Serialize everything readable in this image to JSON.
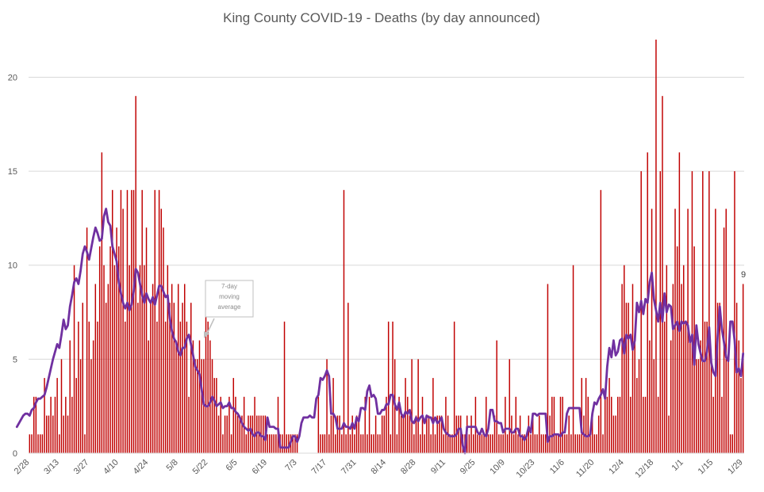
{
  "chart_data": {
    "type": "bar",
    "title": "King County COVID-19 - Deaths (by day announced)",
    "xlabel": "",
    "ylabel": "",
    "ylim": [
      0,
      22
    ],
    "yticks": [
      0,
      5,
      10,
      15,
      20
    ],
    "grid": true,
    "x_tick_labels": [
      "2/28",
      "3/13",
      "3/27",
      "4/10",
      "4/24",
      "5/8",
      "5/22",
      "6/5",
      "6/19",
      "7/3",
      "7/17",
      "7/31",
      "8/14",
      "8/28",
      "9/11",
      "9/25",
      "10/9",
      "10/23",
      "11/6",
      "11/20",
      "12/4",
      "12/18",
      "1/1",
      "1/15",
      "1/29"
    ],
    "series": [
      {
        "type": "bar",
        "color": "#C00000",
        "values": [
          1,
          1,
          3,
          3,
          1,
          1,
          1,
          4,
          2,
          2,
          3,
          2,
          3,
          4,
          1,
          5,
          2,
          3,
          2,
          6,
          3,
          10,
          4,
          7,
          5,
          8,
          1,
          12,
          7,
          5,
          6,
          9,
          7,
          11,
          16,
          10,
          8,
          9,
          11,
          14,
          10,
          12,
          11,
          14,
          13,
          7,
          14,
          10,
          14,
          14,
          19,
          8,
          10,
          14,
          10,
          12,
          6,
          8,
          9,
          14,
          7,
          14,
          13,
          12,
          7,
          10,
          8,
          9,
          8,
          6,
          9,
          7,
          8,
          9,
          7,
          3,
          8,
          6,
          5,
          5,
          6,
          5,
          5,
          8,
          7,
          6,
          5,
          4,
          4,
          2,
          3,
          1,
          2,
          2,
          3,
          1,
          4,
          3,
          2,
          2,
          2,
          3,
          1,
          2,
          2,
          2,
          3,
          2,
          2,
          2,
          2,
          2,
          1,
          1,
          1,
          1,
          1,
          3,
          1,
          1,
          7,
          1,
          1,
          1,
          1,
          1,
          1,
          0,
          0,
          0,
          0,
          0,
          0,
          0,
          0,
          0,
          3,
          1,
          1,
          1,
          5,
          1,
          2,
          4,
          1,
          2,
          2,
          1,
          14,
          1,
          8,
          1,
          2,
          1,
          2,
          2,
          1,
          1,
          3,
          1,
          3,
          1,
          1,
          2,
          1,
          1,
          2,
          2,
          3,
          7,
          1,
          7,
          5,
          1,
          3,
          2,
          2,
          4,
          3,
          2,
          5,
          1,
          2,
          5,
          1,
          3,
          1,
          2,
          2,
          1,
          4,
          1,
          2,
          2,
          2,
          1,
          3,
          2,
          1,
          1,
          7,
          2,
          2,
          2,
          1,
          1,
          2,
          1,
          2,
          1,
          3,
          1,
          1,
          1,
          1,
          3,
          1,
          1,
          1,
          2,
          6,
          1,
          1,
          1,
          3,
          1,
          5,
          2,
          1,
          3,
          1,
          2,
          1,
          1,
          1,
          2,
          1,
          2,
          1,
          1,
          2,
          1,
          1,
          1,
          9,
          2,
          3,
          3,
          1,
          1,
          3,
          3,
          1,
          1,
          2,
          1,
          10,
          1,
          1,
          1,
          4,
          2,
          4,
          3,
          1,
          2,
          1,
          1,
          2,
          14,
          1,
          3,
          3,
          4,
          3,
          2,
          2,
          3,
          3,
          9,
          10,
          8,
          8,
          3,
          9,
          6,
          4,
          5,
          15,
          3,
          3,
          16,
          6,
          13,
          5,
          22,
          3,
          15,
          19,
          7,
          10,
          2,
          6,
          9,
          13,
          11,
          16,
          9,
          10,
          7,
          13,
          6,
          15,
          11,
          5,
          5,
          6,
          15,
          7,
          7,
          15,
          5,
          3,
          13,
          8,
          8,
          3,
          12,
          13,
          5,
          1,
          1,
          15,
          8,
          6,
          4,
          9
        ]
      },
      {
        "type": "line",
        "name": "7-day moving average",
        "color": "#7030A0",
        "values": [
          1.4,
          1.6,
          1.8,
          2.0,
          2.1,
          2.1,
          2.0,
          2.3,
          2.4,
          2.7,
          2.9,
          2.9,
          3.0,
          3.1,
          3.5,
          4.0,
          4.5,
          5.0,
          5.4,
          5.8,
          5.6,
          6.3,
          7.1,
          6.6,
          6.8,
          7.8,
          8.4,
          9.1,
          9.3,
          9.0,
          9.7,
          10.6,
          11.0,
          10.7,
          10.3,
          10.9,
          11.5,
          12.0,
          11.7,
          11.3,
          11.4,
          12.6,
          13.0,
          12.3,
          12.1,
          11.0,
          10.6,
          10.2,
          9.1,
          8.5,
          8.0,
          7.7,
          8.0,
          7.6,
          7.9,
          8.6,
          9.8,
          9.6,
          9.0,
          8.4,
          8.0,
          8.5,
          8.2,
          8.0,
          8.3,
          7.9,
          8.4,
          8.9,
          8.9,
          8.6,
          8.3,
          8.4,
          7.2,
          6.5,
          6.1,
          5.9,
          5.4,
          5.2,
          5.6,
          5.6,
          6.1,
          6.3,
          5.8,
          5.2,
          4.6,
          4.4,
          4.2,
          3.4,
          2.6,
          2.5,
          2.5,
          2.7,
          3.0,
          2.8,
          2.5,
          2.6,
          2.7,
          2.4,
          2.5,
          2.5,
          2.7,
          2.4,
          2.4,
          2.2,
          2.1,
          1.9,
          1.6,
          1.4,
          1.3,
          1.2,
          1.3,
          1.0,
          0.9,
          1.1,
          1.1,
          0.9,
          0.9,
          0.7,
          1.9,
          1.4,
          1.4,
          1.4,
          1.3,
          1.3,
          0.3,
          0.3,
          0.3,
          0.3,
          0.3,
          0.6,
          0.9,
          0.9,
          0.6,
          0.9,
          1.6,
          1.9,
          1.9,
          1.9,
          2.0,
          1.9,
          1.9,
          2.9,
          3.1,
          4.0,
          3.9,
          4.1,
          4.4,
          4.1,
          2.1,
          2.1,
          1.9,
          1.3,
          1.3,
          1.3,
          1.6,
          1.4,
          1.4,
          1.3,
          1.6,
          1.3,
          1.9,
          1.7,
          2.4,
          2.4,
          2.3,
          3.3,
          3.6,
          3.0,
          3.1,
          2.9,
          2.1,
          2.1,
          2.3,
          2.3,
          2.6,
          2.6,
          3.1,
          3.1,
          2.6,
          2.3,
          2.7,
          2.1,
          1.9,
          2.2,
          2.1,
          2.3,
          1.7,
          1.6,
          1.9,
          1.7,
          1.9,
          2.0,
          1.6,
          2.0,
          1.9,
          1.9,
          1.6,
          1.9,
          1.6,
          1.7,
          1.9,
          1.3,
          1.1,
          1.0,
          0.9,
          0.9,
          0.9,
          1.0,
          1.3,
          1.3,
          0.4,
          0.0,
          1.4,
          1.4,
          1.4,
          1.4,
          1.4,
          1.1,
          1.0,
          1.3,
          1.0,
          0.9,
          1.3,
          2.3,
          2.3,
          1.7,
          1.7,
          1.6,
          1.6,
          1.1,
          1.3,
          1.3,
          1.3,
          1.1,
          1.1,
          1.3,
          1.3,
          0.9,
          0.9,
          0.7,
          0.9,
          1.4,
          1.1,
          2.1,
          2.1,
          2.0,
          2.1,
          2.1,
          2.1,
          2.1,
          0.6,
          0.9,
          0.9,
          1.0,
          1.0,
          1.0,
          0.9,
          1.1,
          1.1,
          2.1,
          2.4,
          2.4,
          2.4,
          2.4,
          2.4,
          2.4,
          1.1,
          1.0,
          0.9,
          0.9,
          1.0,
          2.1,
          2.7,
          2.6,
          2.9,
          3.1,
          3.4,
          2.9,
          4.6,
          5.6,
          5.1,
          6.0,
          5.2,
          5.4,
          6.0,
          6.1,
          5.3,
          6.3,
          6.1,
          6.3,
          5.5,
          6.0,
          8.0,
          7.5,
          8.1,
          7.4,
          8.2,
          8.0,
          9.1,
          9.6,
          8.2,
          7.6,
          7.0,
          8.0,
          7.0,
          8.5,
          7.5,
          7.9,
          7.8,
          6.6,
          6.8,
          7.0,
          6.5,
          7.0,
          6.9,
          7.0,
          6.8,
          5.9,
          6.3,
          4.7,
          6.8,
          5.8,
          5.3,
          4.9,
          4.9,
          5.4,
          6.7,
          4.8,
          4.3,
          4.1,
          6.2,
          7.8,
          6.6,
          5.9,
          5.1,
          4.9,
          7.0,
          7.0,
          6.0,
          4.3,
          4.5,
          4.1,
          5.3
        ]
      }
    ],
    "annotations": [
      {
        "text_lines": [
          "7-day",
          "moving",
          "average"
        ]
      }
    ],
    "last_value_label": "9"
  }
}
